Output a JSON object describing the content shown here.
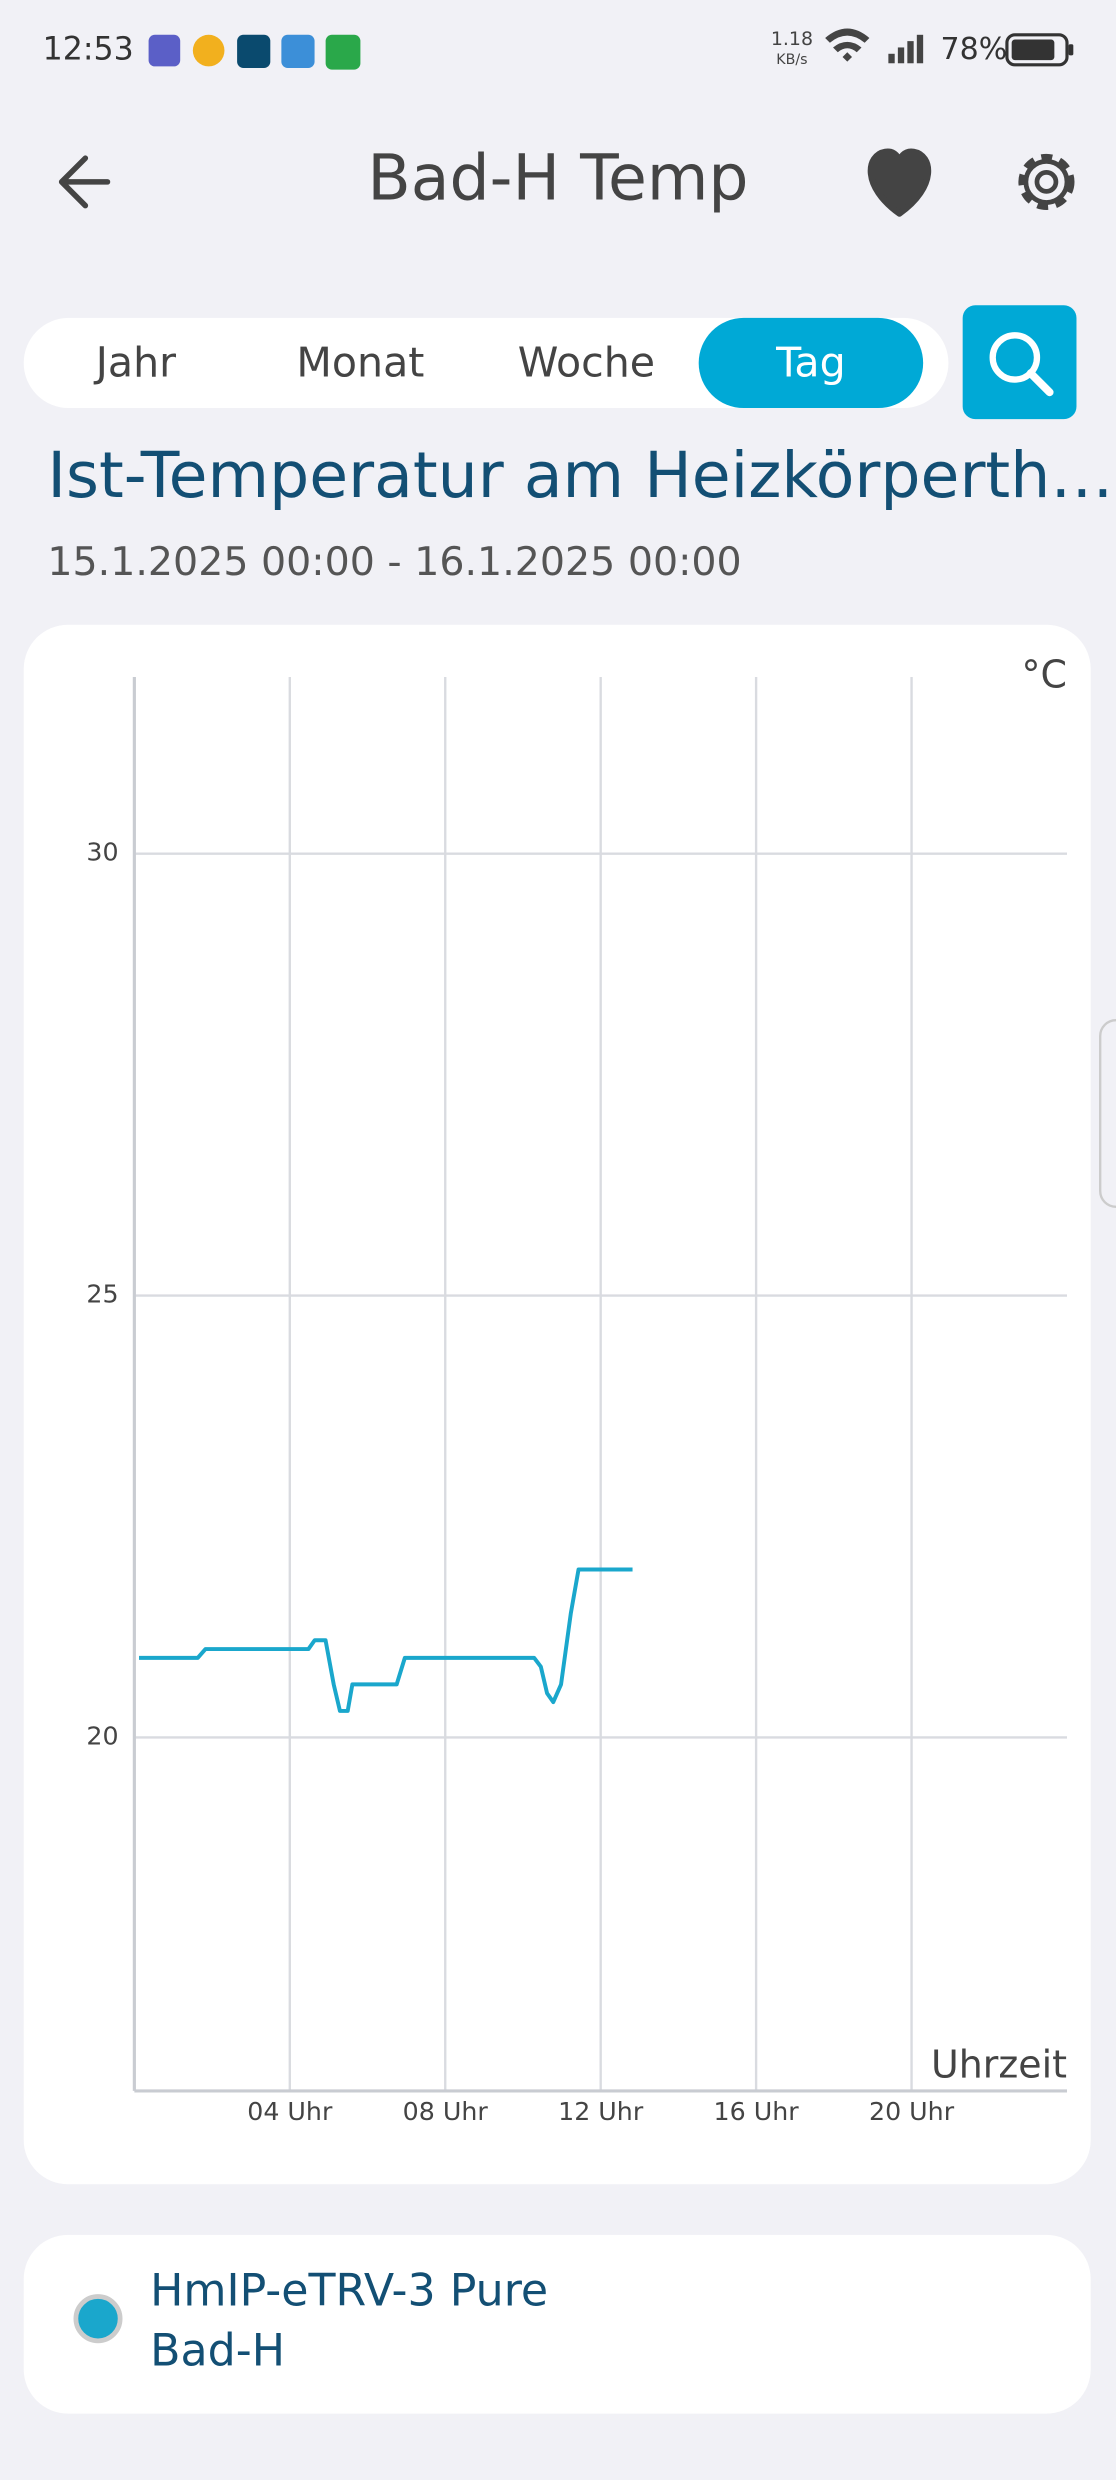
{
  "status_bar": {
    "time": "12:53",
    "speed": "1.18",
    "speed_unit": "KB/s",
    "battery": "78%"
  },
  "header": {
    "title": "Bad-H Temp"
  },
  "tabs": {
    "items": [
      "Jahr",
      "Monat",
      "Woche",
      "Tag"
    ],
    "active": 3
  },
  "chart_heading": "Ist-Temperatur am Heizkörperth…",
  "date_range": "15.1.2025 00:00 - 16.1.2025 00:00",
  "chart_data": {
    "type": "line",
    "y_unit": "°C",
    "xlabel": "Uhrzeit",
    "xlim": [
      0,
      24
    ],
    "xticks": [
      {
        "value": 4,
        "label": "04 Uhr"
      },
      {
        "value": 8,
        "label": "08 Uhr"
      },
      {
        "value": 12,
        "label": "12 Uhr"
      },
      {
        "value": 16,
        "label": "16 Uhr"
      },
      {
        "value": 20,
        "label": "20 Uhr"
      }
    ],
    "ylim": [
      16,
      32
    ],
    "yticks": [
      20,
      25,
      30
    ],
    "grid": true,
    "x": [
      0.12,
      1.63,
      1.83,
      4.48,
      4.64,
      4.92,
      5.13,
      5.29,
      5.49,
      5.61,
      6.75,
      6.96,
      10.29,
      10.46,
      10.62,
      10.78,
      10.98,
      11.23,
      11.43,
      12.82
    ],
    "series": [
      {
        "name": "HmIP-eTRV-3 Pure",
        "subtitle": "Bad-H",
        "color": "#1aa7cc",
        "values": [
          20.9,
          20.9,
          21.0,
          21.0,
          21.1,
          21.1,
          20.6,
          20.3,
          20.3,
          20.6,
          20.6,
          20.9,
          20.9,
          20.8,
          20.5,
          20.4,
          20.6,
          21.4,
          21.9,
          21.9
        ]
      }
    ]
  }
}
